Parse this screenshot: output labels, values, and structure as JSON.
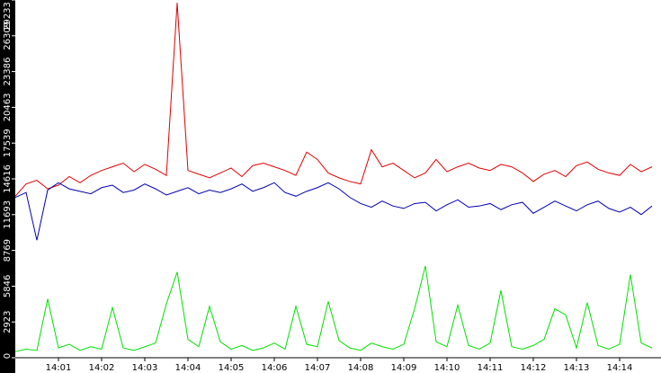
{
  "chart_data": {
    "type": "line",
    "x": [
      840,
      840.25,
      840.5,
      840.75,
      841,
      841.25,
      841.5,
      841.75,
      842,
      842.25,
      842.5,
      842.75,
      843,
      843.25,
      843.5,
      843.75,
      844,
      844.25,
      844.5,
      844.75,
      845,
      845.25,
      845.5,
      845.75,
      846,
      846.25,
      846.5,
      846.75,
      847,
      847.25,
      847.5,
      847.75,
      848,
      848.25,
      848.5,
      848.75,
      849,
      849.25,
      849.5,
      849.75,
      850,
      850.25,
      850.5,
      850.75,
      851,
      851.25,
      851.5,
      851.75,
      852,
      852.25,
      852.5,
      852.75,
      853,
      853.25,
      853.5,
      853.75,
      854,
      854.25,
      854.5,
      854.75
    ],
    "series": [
      {
        "color": "#e00000",
        "values": [
          13200,
          14200,
          14500,
          13800,
          14100,
          14800,
          14300,
          14900,
          15300,
          15600,
          15900,
          15200,
          15800,
          15400,
          14900,
          29000,
          15300,
          15000,
          14700,
          15100,
          15500,
          14800,
          15700,
          15900,
          15600,
          15300,
          14900,
          16800,
          16200,
          15100,
          14700,
          14400,
          14200,
          17000,
          15600,
          15900,
          15300,
          14700,
          15100,
          16200,
          15200,
          15600,
          15900,
          15500,
          15300,
          15800,
          15600,
          15100,
          14400,
          15000,
          15300,
          14800,
          15700,
          16000,
          15400,
          15100,
          14900,
          15800,
          15200,
          15600
        ]
      },
      {
        "color": "#0000b0",
        "values": [
          13100,
          13500,
          9600,
          13700,
          14300,
          13800,
          13600,
          13400,
          13900,
          14100,
          13500,
          13700,
          14200,
          13800,
          13300,
          13600,
          13900,
          13400,
          13700,
          13500,
          13800,
          14200,
          13600,
          13900,
          14300,
          13500,
          13200,
          13600,
          13900,
          14300,
          13800,
          13100,
          12600,
          12300,
          12800,
          12400,
          12200,
          12600,
          12700,
          12000,
          12500,
          12900,
          12300,
          12400,
          12600,
          12100,
          12500,
          12700,
          11800,
          12300,
          12800,
          12400,
          12000,
          12500,
          12800,
          12200,
          11900,
          12300,
          11700,
          12400
        ]
      },
      {
        "color": "#00e000",
        "values": [
          500,
          700,
          600,
          4800,
          800,
          1100,
          600,
          900,
          700,
          4100,
          800,
          600,
          900,
          1200,
          4400,
          7000,
          1500,
          900,
          4200,
          1300,
          700,
          1000,
          600,
          800,
          1200,
          700,
          4200,
          1100,
          900,
          4600,
          1400,
          800,
          600,
          1200,
          900,
          700,
          1100,
          4000,
          7500,
          1300,
          900,
          4300,
          1000,
          700,
          1200,
          5500,
          900,
          700,
          1000,
          1500,
          4000,
          3500,
          800,
          4500,
          1000,
          700,
          1100,
          6800,
          1200,
          800
        ]
      }
    ],
    "xlim": [
      840,
      855
    ],
    "xticks": [
      {
        "value": 841,
        "label": "14:01"
      },
      {
        "value": 842,
        "label": "14:02"
      },
      {
        "value": 843,
        "label": "14:03"
      },
      {
        "value": 844,
        "label": "14:04"
      },
      {
        "value": 845,
        "label": "14:05"
      },
      {
        "value": 846,
        "label": "14:06"
      },
      {
        "value": 847,
        "label": "14:07"
      },
      {
        "value": 848,
        "label": "14:08"
      },
      {
        "value": 849,
        "label": "14:09"
      },
      {
        "value": 850,
        "label": "14:10"
      },
      {
        "value": 851,
        "label": "14:11"
      },
      {
        "value": 852,
        "label": "14:12"
      },
      {
        "value": 853,
        "label": "14:13"
      },
      {
        "value": 854,
        "label": "14:14"
      }
    ],
    "ylim": [
      0,
      29233
    ],
    "yticks": [
      0,
      2923,
      5846,
      8769,
      11693,
      14616,
      17539,
      20463,
      23386,
      26309,
      29233
    ]
  }
}
